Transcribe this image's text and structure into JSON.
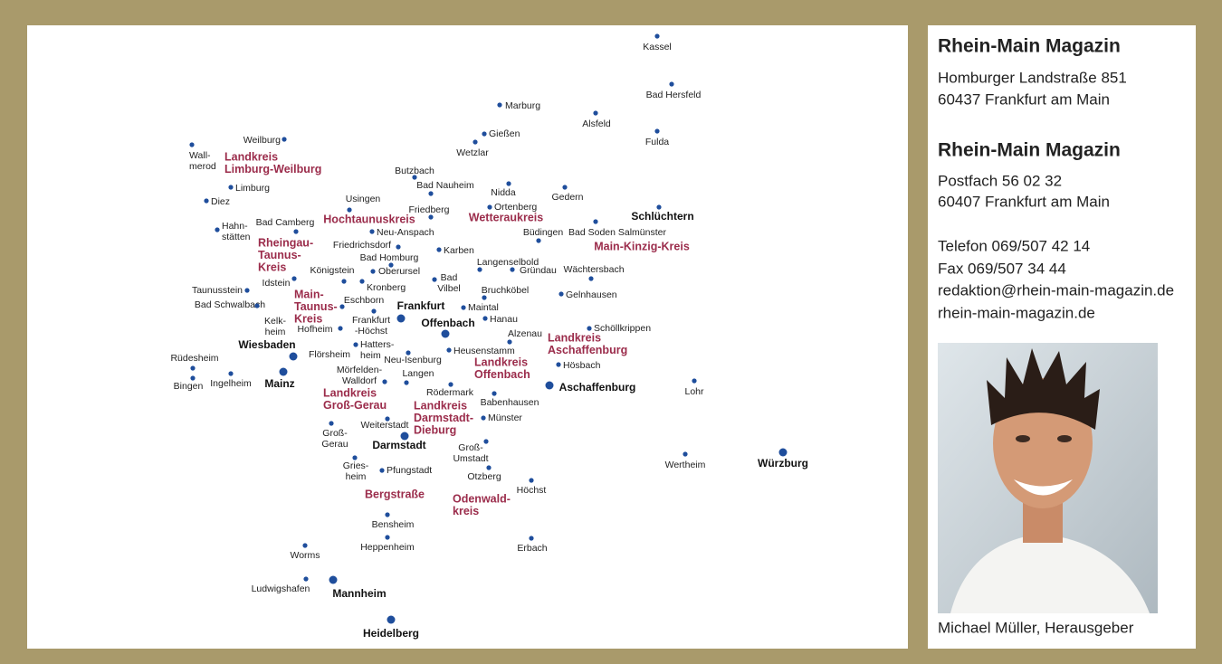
{
  "map": {
    "cities": [
      [
        "Kassel"
      ],
      [
        "Bad Hersfeld"
      ],
      [
        "Marburg"
      ],
      [
        "Alsfeld"
      ],
      [
        "Fulda"
      ],
      [
        "Gießen"
      ],
      [
        "Wetzlar"
      ],
      [
        "Weilburg"
      ],
      [
        "Wall-",
        "merod"
      ],
      [
        "Butzbach"
      ],
      [
        "Bad Nauheim"
      ],
      [
        "Limburg"
      ],
      [
        "Usingen"
      ],
      [
        "Nidda"
      ],
      [
        "Gedern"
      ],
      [
        "Diez"
      ],
      [
        "Friedberg"
      ],
      [
        "Ortenberg"
      ],
      [
        "Hahn-",
        "stätten"
      ],
      [
        "Bad Camberg"
      ],
      [
        "Neu-Anspach"
      ],
      [
        "Bad Soden Salmünster"
      ],
      [
        "Büdingen"
      ],
      [
        "Friedrichsdorf"
      ],
      [
        "Karben"
      ],
      [
        "Bad Homburg"
      ],
      [
        "Langenselbold"
      ],
      [
        "Gründau"
      ],
      [
        "Wächtersbach"
      ],
      [
        "Königstein"
      ],
      [
        "Oberursel"
      ],
      [
        "Idstein"
      ],
      [
        "Kronberg"
      ],
      [
        "Bad",
        "Vilbel"
      ],
      [
        "Taunusstein"
      ],
      [
        "Bruchköbel"
      ],
      [
        "Gelnhausen"
      ],
      [
        "Eschborn"
      ],
      [
        "Bad Schwalbach"
      ],
      [
        "Maintal"
      ],
      [
        "Frankfurt",
        "-Höchst"
      ],
      [
        "Kelk-",
        "heim"
      ],
      [
        "Hanau"
      ],
      [
        "Hofheim"
      ],
      [
        "Schöllkrippen"
      ],
      [
        "Alzenau"
      ],
      [
        "Hatters-",
        "heim"
      ],
      [
        "Heusenstamm"
      ],
      [
        "Flörsheim"
      ],
      [
        "Neu-Isenburg"
      ],
      [
        "Rüdesheim"
      ],
      [
        "Hösbach"
      ],
      [
        "Mörfelden-",
        "Walldorf"
      ],
      [
        "Langen"
      ],
      [
        "Bingen"
      ],
      [
        "Ingelheim"
      ],
      [
        "Rödermark"
      ],
      [
        "Lohr"
      ],
      [
        "Babenhausen"
      ],
      [
        "Münster"
      ],
      [
        "Weiterstadt"
      ],
      [
        "Groß-",
        "Gerau"
      ],
      [
        "Groß-",
        "Umstadt"
      ],
      [
        "Wertheim"
      ],
      [
        "Gries-",
        "heim"
      ],
      [
        "Pfungstadt"
      ],
      [
        "Otzberg"
      ],
      [
        "Höchst"
      ],
      [
        "Bensheim"
      ],
      [
        "Heppenheim"
      ],
      [
        "Erbach"
      ],
      [
        "Worms"
      ],
      [
        "Ludwigshafen"
      ]
    ],
    "major_cities": [
      "Schlüchtern",
      "Frankfurt",
      "Offenbach",
      "Wiesbaden",
      "Mainz",
      "Aschaffenburg",
      "Darmstadt",
      "Würzburg",
      "Mannheim",
      "Heidelberg"
    ],
    "districts": [
      [
        "Landkreis",
        "Limburg-Weilburg"
      ],
      [
        "Hochtaunuskreis"
      ],
      [
        "Wetteraukreis"
      ],
      [
        "Rheingau-",
        "Taunus-",
        "Kreis"
      ],
      [
        "Main-Kinzig-Kreis"
      ],
      [
        "Main-",
        "Taunus-",
        "Kreis"
      ],
      [
        "Landkreis",
        "Aschaffenburg"
      ],
      [
        "Landkreis",
        "Offenbach"
      ],
      [
        "Landkreis",
        "Groß-Gerau"
      ],
      [
        "Landkreis",
        "Darmstadt-",
        "Dieburg"
      ],
      [
        "Bergstraße"
      ],
      [
        "Odenwald-",
        "kreis"
      ]
    ]
  },
  "sidebar": {
    "address_1": {
      "name": "Rhein-Main Magazin",
      "street": "Homburger Landstraße 851",
      "city": "60437 Frankfurt am Main"
    },
    "address_2": {
      "name": "Rhein-Main Magazin",
      "street": "Postfach 56 02 32",
      "city": "60407 Frankfurt am Main"
    },
    "contact": [
      "Telefon 069/507 42 14",
      "Fax 069/507 34 44",
      "redaktion@rhein-main-magazin.de",
      "rhein-main-magazin.de"
    ],
    "photo_caption": "Michael Müller, Herausgeber"
  }
}
